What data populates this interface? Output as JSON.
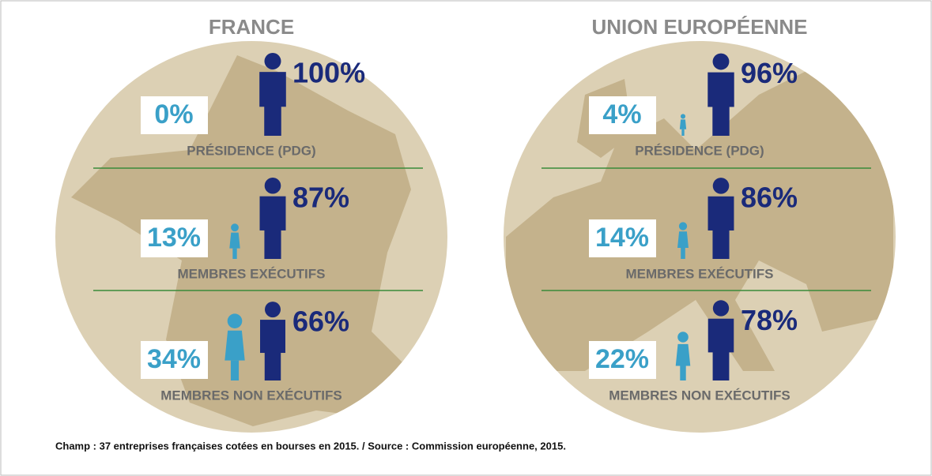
{
  "chart_data": [
    {
      "type": "pictogram",
      "title": "FRANCE",
      "categories": [
        "PRÉSIDENCE (PDG)",
        "MEMBRES EXÉCUTIFS",
        "MEMBRES NON EXÉCUTIFS"
      ],
      "series": [
        {
          "color": "#3aa0c8",
          "values": [
            0,
            13,
            34
          ],
          "value_labels": [
            "0%",
            "13%",
            "34%"
          ]
        },
        {
          "color": "#1a2a7a",
          "values": [
            100,
            87,
            66
          ],
          "value_labels": [
            "100%",
            "87%",
            "66%"
          ]
        }
      ]
    },
    {
      "type": "pictogram",
      "title": "UNION EUROPÉENNE",
      "categories": [
        "PRÉSIDENCE (PDG)",
        "MEMBRES EXÉCUTIFS",
        "MEMBRES NON EXÉCUTIFS"
      ],
      "series": [
        {
          "color": "#3aa0c8",
          "values": [
            4,
            14,
            22
          ],
          "value_labels": [
            "4%",
            "14%",
            "22%"
          ]
        },
        {
          "color": "#1a2a7a",
          "values": [
            96,
            86,
            78
          ],
          "value_labels": [
            "96%",
            "86%",
            "78%"
          ]
        }
      ]
    }
  ],
  "footnote": "Champ : 37 entreprises françaises cotées en bourses en 2015. / Source : Commission européenne, 2015."
}
